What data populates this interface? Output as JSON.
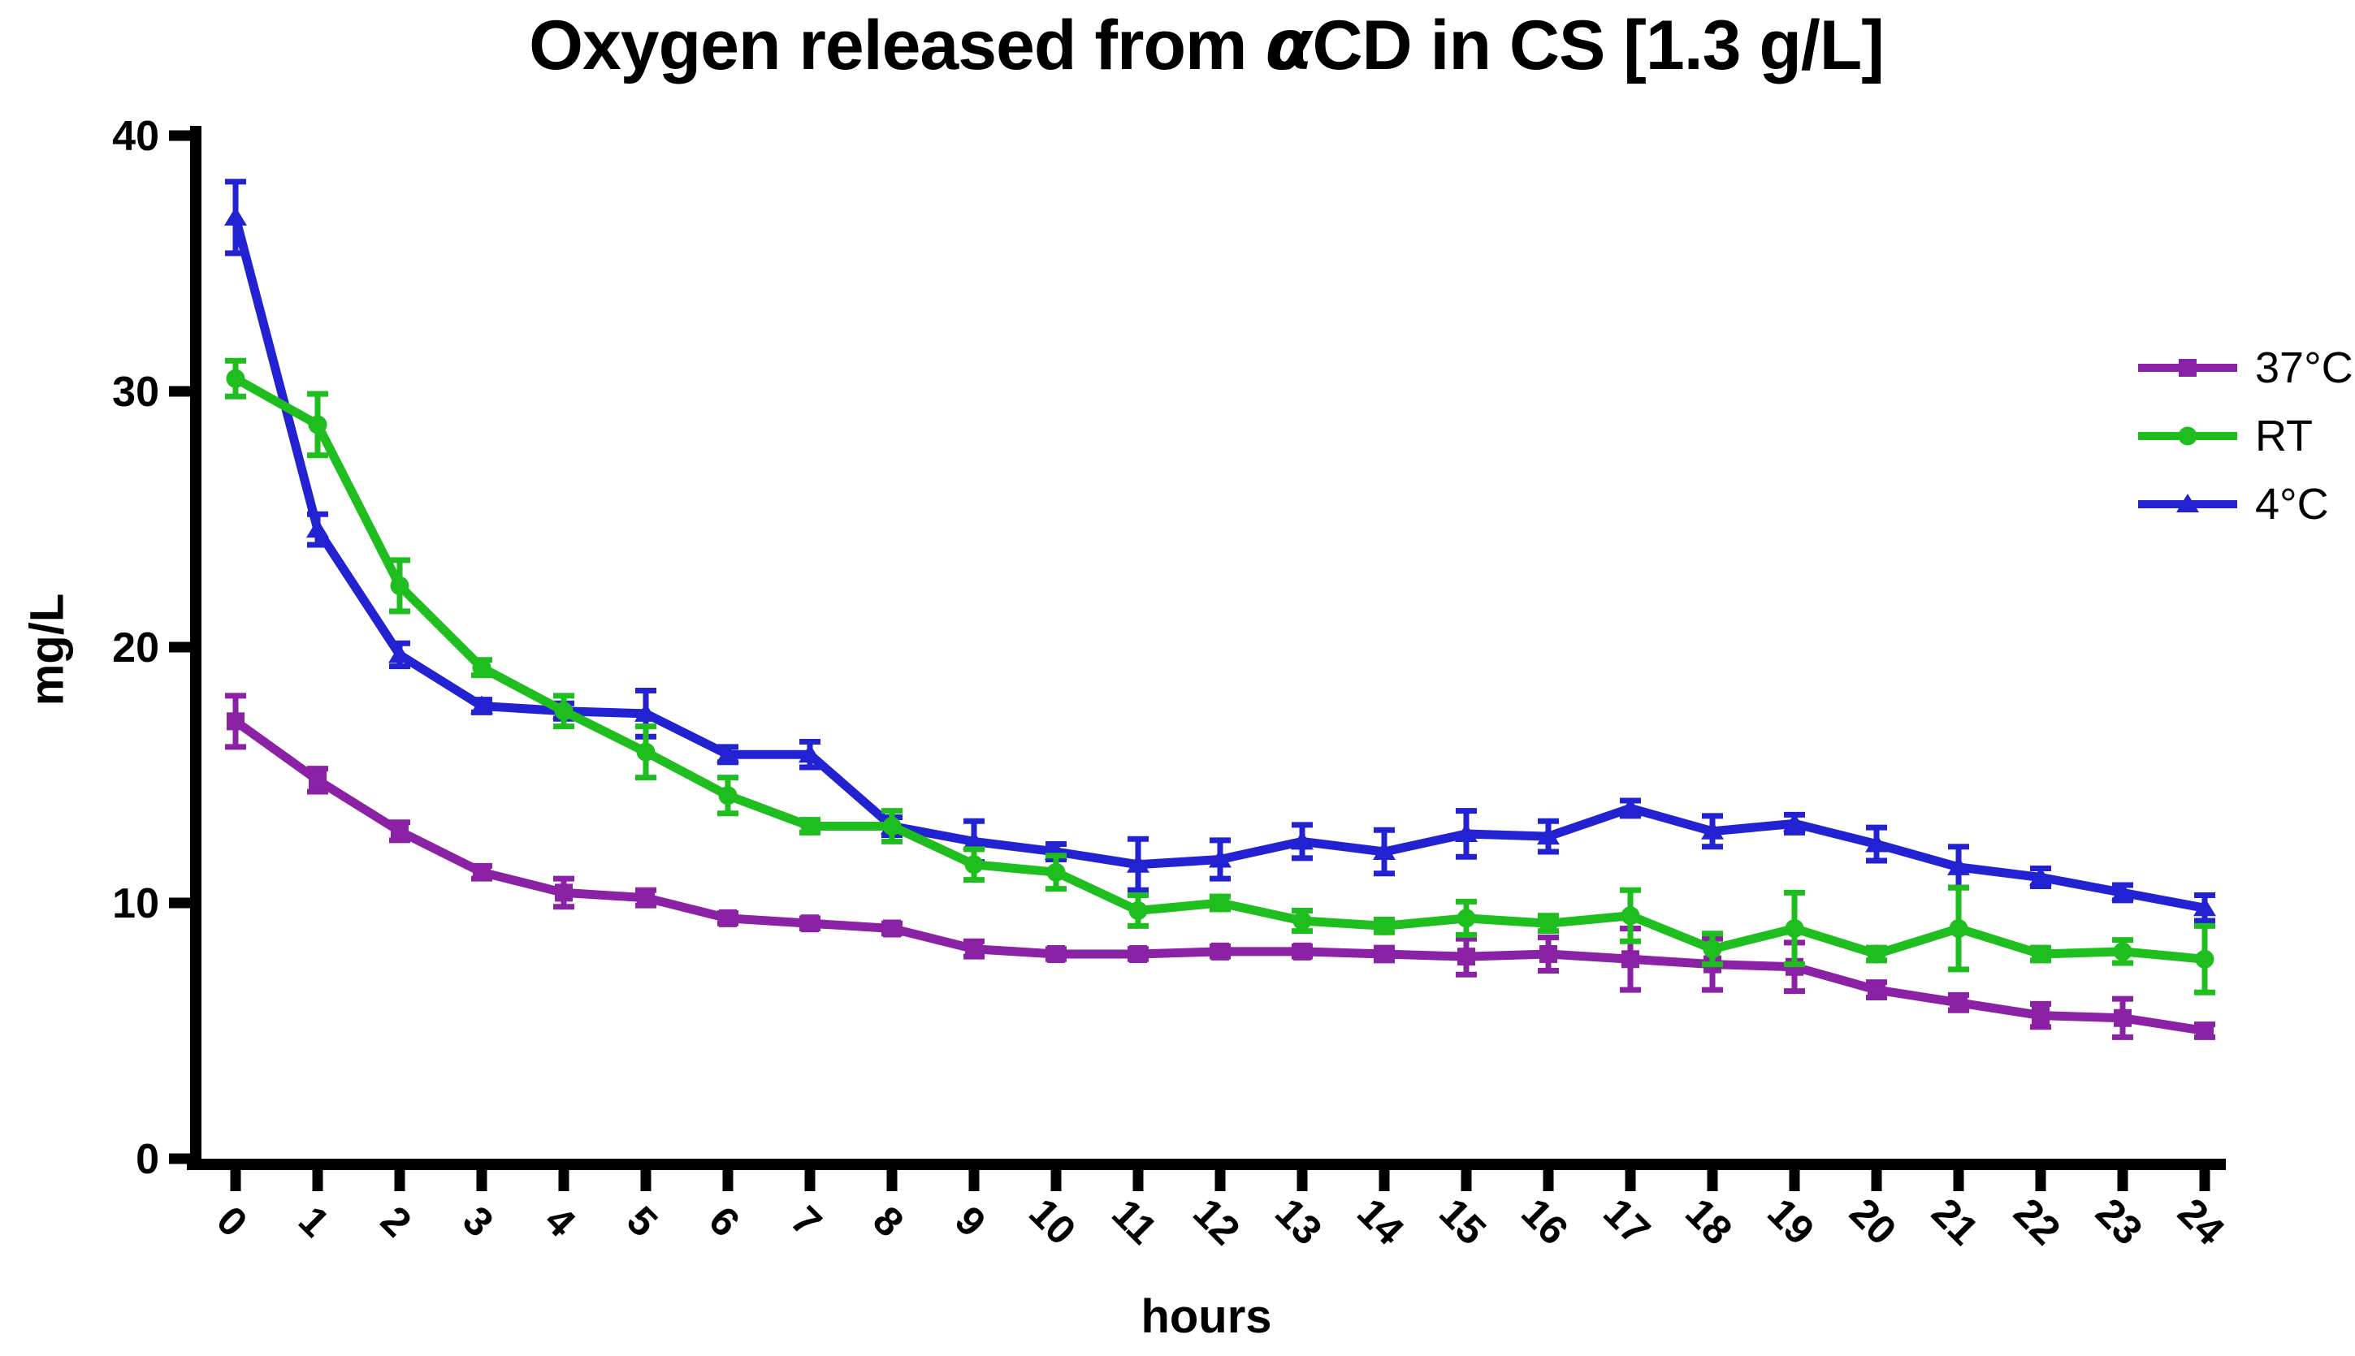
{
  "title_parts": {
    "prefix": "Oxygen released from ",
    "alpha": "α",
    "suffix": "CD in CS [1.3 g/L]"
  },
  "chart_data": {
    "type": "line",
    "title": "Oxygen released from αCD in CS [1.3 g/L]",
    "xlabel": "hours",
    "ylabel": "mg/L",
    "x": [
      0,
      1,
      2,
      3,
      4,
      5,
      6,
      7,
      8,
      9,
      10,
      11,
      12,
      13,
      14,
      15,
      16,
      17,
      18,
      19,
      20,
      21,
      22,
      23,
      24
    ],
    "x_ticks": [
      0,
      1,
      2,
      3,
      4,
      5,
      6,
      7,
      8,
      9,
      10,
      11,
      12,
      13,
      14,
      15,
      16,
      17,
      18,
      19,
      20,
      21,
      22,
      23,
      24
    ],
    "y_ticks": [
      0,
      10,
      20,
      30,
      40
    ],
    "ylim": [
      0,
      40
    ],
    "grid": false,
    "legend_position": "right",
    "error_bars": true,
    "series": [
      {
        "name": "37°C",
        "marker": "square",
        "color": "#8B21A5",
        "values": [
          17.1,
          14.8,
          12.8,
          11.2,
          10.4,
          10.2,
          9.4,
          9.2,
          9.0,
          8.2,
          8.0,
          8.0,
          8.1,
          8.1,
          8.0,
          7.9,
          8.0,
          7.8,
          7.6,
          7.5,
          6.6,
          6.1,
          5.6,
          5.5,
          5.0
        ],
        "errors": [
          1.0,
          0.45,
          0.35,
          0.25,
          0.55,
          0.3,
          0.2,
          0.2,
          0.2,
          0.3,
          0.2,
          0.2,
          0.2,
          0.2,
          0.25,
          0.7,
          0.65,
          1.2,
          1.0,
          0.95,
          0.3,
          0.3,
          0.45,
          0.75,
          0.25
        ]
      },
      {
        "name": "RT",
        "marker": "circle",
        "color": "#1EBE1E",
        "values": [
          30.5,
          28.7,
          22.4,
          19.2,
          17.5,
          15.9,
          14.2,
          13.0,
          13.0,
          11.5,
          11.2,
          9.7,
          10.0,
          9.3,
          9.1,
          9.4,
          9.2,
          9.5,
          8.2,
          9.0,
          8.0,
          9.0,
          8.0,
          8.1,
          7.8
        ],
        "errors": [
          0.7,
          1.2,
          1.0,
          0.3,
          0.6,
          1.0,
          0.7,
          0.25,
          0.6,
          0.6,
          0.65,
          0.6,
          0.25,
          0.4,
          0.25,
          0.65,
          0.3,
          1.0,
          0.6,
          1.4,
          0.25,
          1.6,
          0.25,
          0.45,
          1.3
        ]
      },
      {
        "name": "4°C",
        "marker": "triangle",
        "color": "#2222D2",
        "values": [
          36.8,
          24.6,
          19.7,
          17.7,
          17.5,
          17.4,
          15.8,
          15.8,
          13.0,
          12.4,
          12.0,
          11.5,
          11.7,
          12.4,
          12.0,
          12.7,
          12.6,
          13.7,
          12.8,
          13.1,
          12.3,
          11.4,
          11.0,
          10.4,
          9.8
        ],
        "errors": [
          1.4,
          0.6,
          0.45,
          0.25,
          0.3,
          0.9,
          0.3,
          0.5,
          0.35,
          0.8,
          0.3,
          1.0,
          0.75,
          0.65,
          0.85,
          0.9,
          0.6,
          0.3,
          0.6,
          0.35,
          0.65,
          0.8,
          0.35,
          0.3,
          0.5
        ]
      }
    ]
  }
}
